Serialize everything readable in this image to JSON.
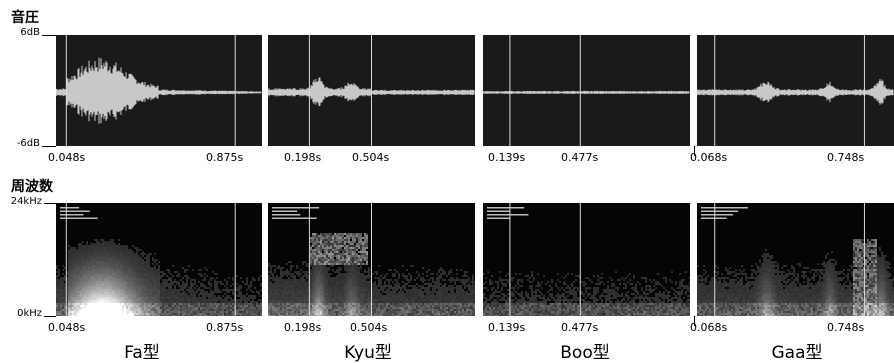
{
  "section_pressure": "音圧",
  "section_frequency": "周波数",
  "pressure_axis": {
    "top": "6dB",
    "bottom": "-6dB"
  },
  "frequency_axis": {
    "top": "24kHz",
    "bottom": "0kHz"
  },
  "panels": [
    {
      "caption": "Fa型",
      "wave_times": [
        "0.048s",
        "0.875s"
      ],
      "spec_times": [
        "0.048s",
        "0.875s"
      ]
    },
    {
      "caption": "Kyu型",
      "wave_times": [
        "0.198s",
        "0.504s"
      ],
      "spec_times": [
        "0.198s",
        "0.504s"
      ]
    },
    {
      "caption": "Boo型",
      "wave_times": [
        "0.139s",
        "0.477s"
      ],
      "spec_times": [
        "0.139s",
        "0.477s"
      ]
    },
    {
      "caption": "Gaa型",
      "wave_times": [
        "0.068s",
        "0.748s"
      ],
      "spec_times": [
        "0.068s",
        "0.748s"
      ]
    }
  ],
  "colors": {
    "panel_bg": "#1a1a1a",
    "wave": "#c8c8c8",
    "marker": "#d8d8d8"
  }
}
